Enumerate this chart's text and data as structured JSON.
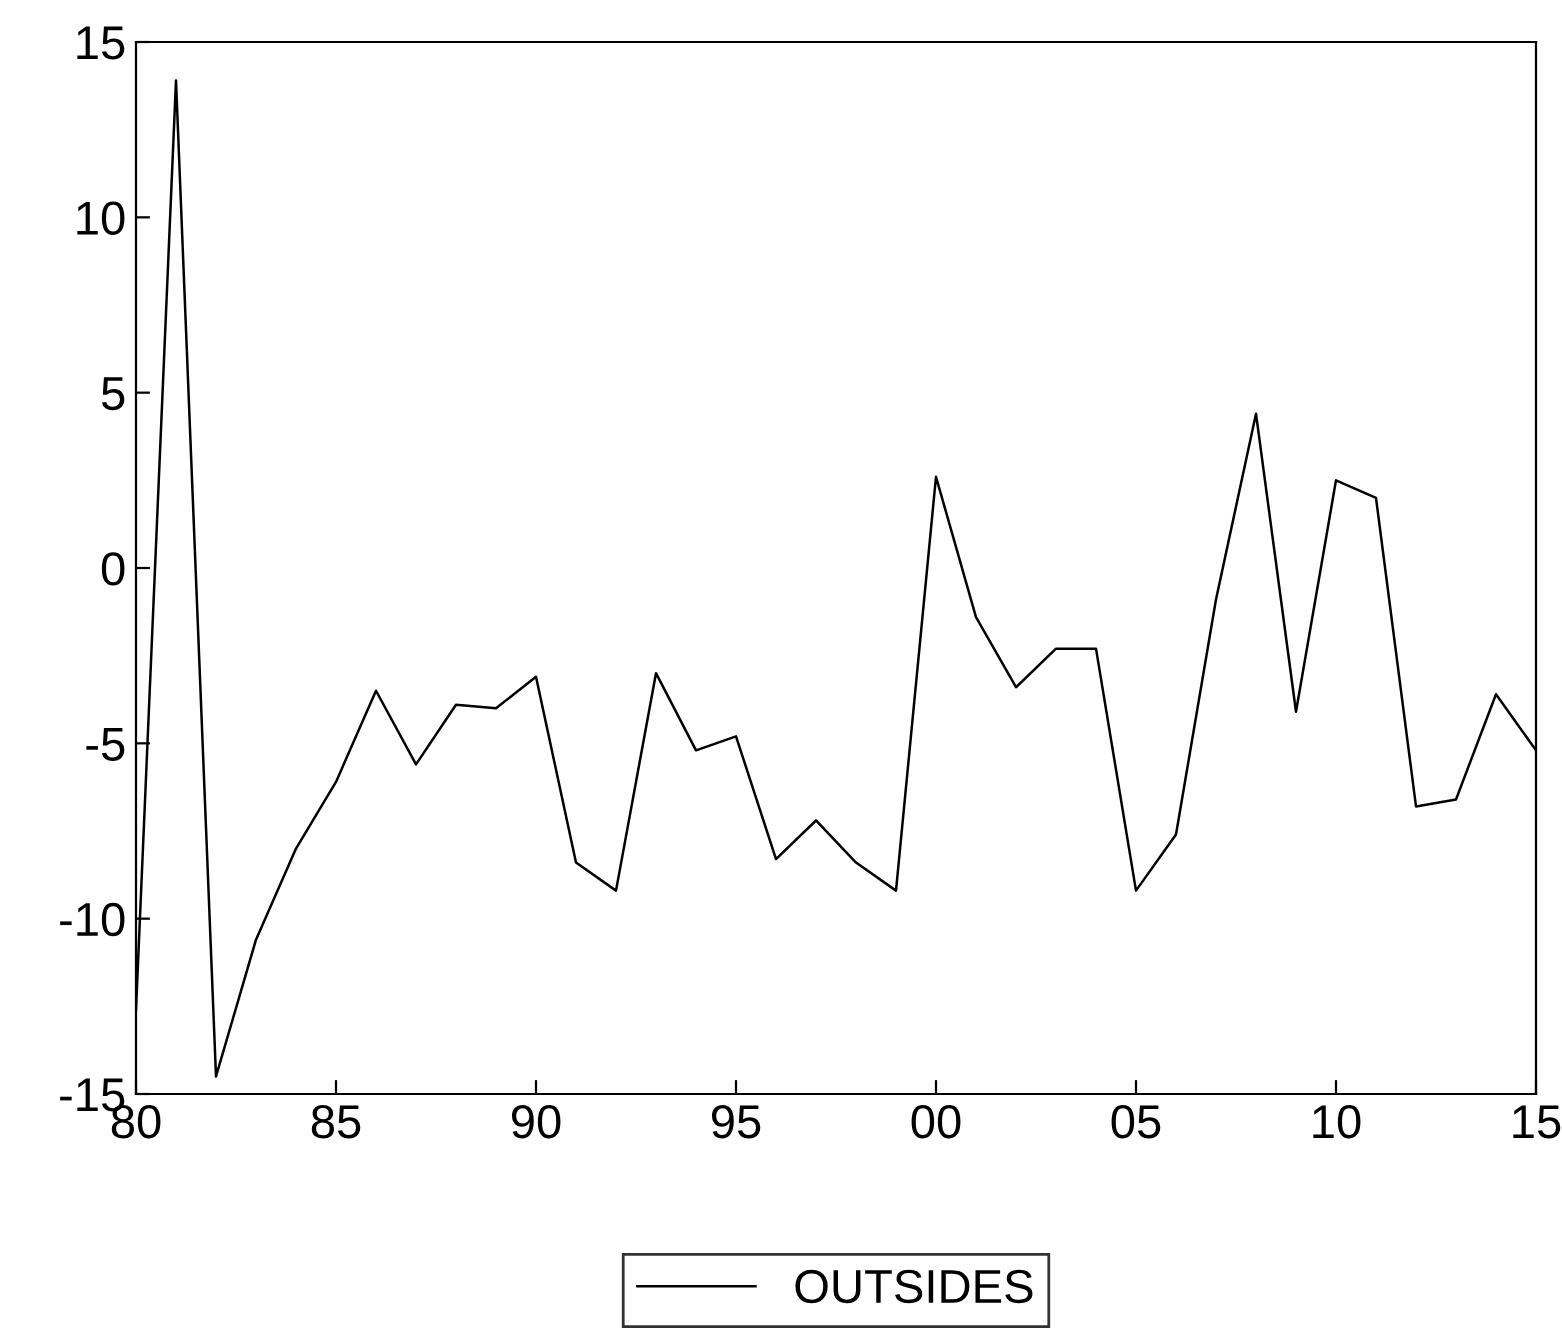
{
  "chart_data": {
    "type": "line",
    "x": [
      1980,
      1981,
      1982,
      1983,
      1984,
      1985,
      1986,
      1987,
      1988,
      1989,
      1990,
      1991,
      1992,
      1993,
      1994,
      1995,
      1996,
      1997,
      1998,
      1999,
      2000,
      2001,
      2002,
      2003,
      2004,
      2005,
      2006,
      2007,
      2008,
      2009,
      2010,
      2011,
      2012,
      2013,
      2014,
      2015
    ],
    "series": [
      {
        "name": "OUTSIDES",
        "color": "#000000",
        "values": [
          -12.6,
          13.9,
          -14.5,
          -10.6,
          -8.0,
          -6.1,
          -3.5,
          -5.6,
          -3.9,
          -4.0,
          -3.1,
          -8.4,
          -9.2,
          -3.0,
          -5.2,
          -4.8,
          -8.3,
          -7.2,
          -8.4,
          -9.2,
          2.6,
          -1.4,
          -3.4,
          -2.3,
          -2.3,
          -9.2,
          -7.6,
          -0.9,
          4.4,
          -4.1,
          2.5,
          2.0,
          -6.8,
          -6.6,
          -3.6,
          -5.2
        ]
      }
    ],
    "xlim": [
      1980,
      2015
    ],
    "xticks": [
      {
        "value": 1980,
        "label": "80"
      },
      {
        "value": 1985,
        "label": "85"
      },
      {
        "value": 1990,
        "label": "90"
      },
      {
        "value": 1995,
        "label": "95"
      },
      {
        "value": 2000,
        "label": "00"
      },
      {
        "value": 2005,
        "label": "05"
      },
      {
        "value": 2010,
        "label": "10"
      },
      {
        "value": 2015,
        "label": "15"
      }
    ],
    "ylim": [
      -15,
      15
    ],
    "yticks": [
      -15,
      -10,
      -5,
      0,
      5,
      10,
      15
    ],
    "grid": false,
    "legend": "bottom",
    "marker": "none",
    "line_style": "solid"
  }
}
